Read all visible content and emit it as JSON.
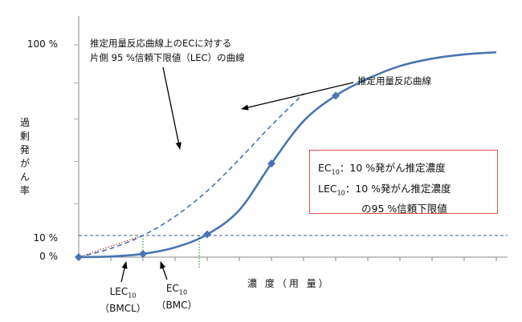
{
  "chart_data": {
    "type": "line",
    "y_tick_labels": [
      "0 %",
      "10 %",
      "100 %"
    ],
    "y_tick_values": [
      0,
      10,
      100
    ],
    "ylabel": "過剰発がん率",
    "xlabel": "濃 度（用 量）",
    "series": [
      {
        "role": "dose-response-curve",
        "style": "solid",
        "x": [
          0,
          1,
          2,
          3,
          4,
          5,
          6,
          7,
          8,
          9,
          10,
          11,
          12,
          13
        ],
        "y": [
          0,
          0.3,
          1.5,
          4.5,
          10.5,
          22,
          44,
          64,
          76,
          84,
          90,
          93.5,
          95.5,
          96.5
        ],
        "markers_x": [
          0,
          2,
          4,
          6,
          8
        ]
      },
      {
        "role": "lower-confidence-curve",
        "style": "dashed",
        "x": [
          0,
          1,
          2,
          3,
          4,
          5,
          6,
          7
        ],
        "y": [
          0,
          4,
          10,
          19,
          31,
          46,
          62,
          77
        ]
      }
    ],
    "reference_lines": [
      {
        "axis": "y",
        "value": 10,
        "style": "dashed"
      }
    ],
    "annotations": {
      "lec_curve": [
        "推定用量反応曲線上のECに対する",
        "片側 95 %信頼下限値（LEC）の曲線"
      ],
      "curve": "推定用量反応曲線",
      "lec10": {
        "label": "LEC",
        "sub": "10",
        "paren": "（BMCL）",
        "x": 2.0
      },
      "ec10": {
        "label": "EC",
        "sub": "10",
        "paren": "（BMC）",
        "x": 3.75
      }
    },
    "legend": {
      "placement": "center-right",
      "rows": [
        {
          "term": "EC",
          "sub": "10",
          "text": "：10 %発がん推定濃度"
        },
        {
          "term": "LEC",
          "sub": "10",
          "text": "：10 %発がん推定濃度"
        },
        {
          "term": "",
          "sub": "",
          "text": "の95 %信頼下限値"
        }
      ]
    }
  }
}
